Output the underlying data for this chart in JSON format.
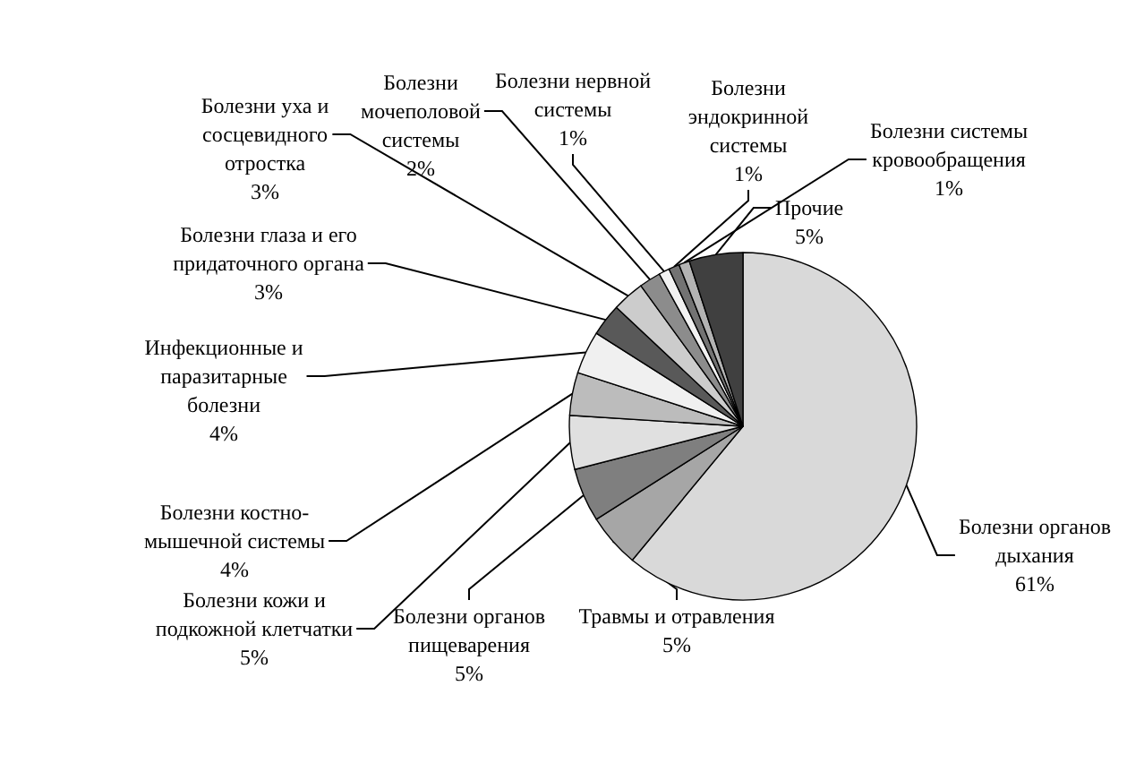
{
  "chart_data": {
    "type": "pie",
    "categories": [
      "Болезни органов дыхания",
      "Травмы и отравления",
      "Болезни органов пищеварения",
      "Болезни кожи и подкожной клетчатки",
      "Болезни костно-мышечной системы",
      "Инфекционные и паразитарные болезни",
      "Болезни глаза и его придаточного органа",
      "Болезни уха и сосцевидного отростка",
      "Болезни мочеполовой системы",
      "Болезни нервной системы",
      "Болезни эндокринной системы",
      "Болезни системы кровообращения",
      "Прочие"
    ],
    "values": [
      61,
      5,
      5,
      5,
      4,
      4,
      3,
      3,
      2,
      1,
      1,
      1,
      5
    ],
    "value_labels": [
      "61%",
      "5%",
      "5%",
      "5%",
      "4%",
      "4%",
      "3%",
      "3%",
      "2%",
      "1%",
      "1%",
      "1%",
      "5%"
    ],
    "colors": [
      "#d9d9d9",
      "#a6a6a6",
      "#7f7f7f",
      "#e0e0e0",
      "#bcbcbc",
      "#f0f0f0",
      "#595959",
      "#cccccc",
      "#8c8c8c",
      "#f2f2f2",
      "#737373",
      "#b3b3b3",
      "#404040"
    ]
  }
}
